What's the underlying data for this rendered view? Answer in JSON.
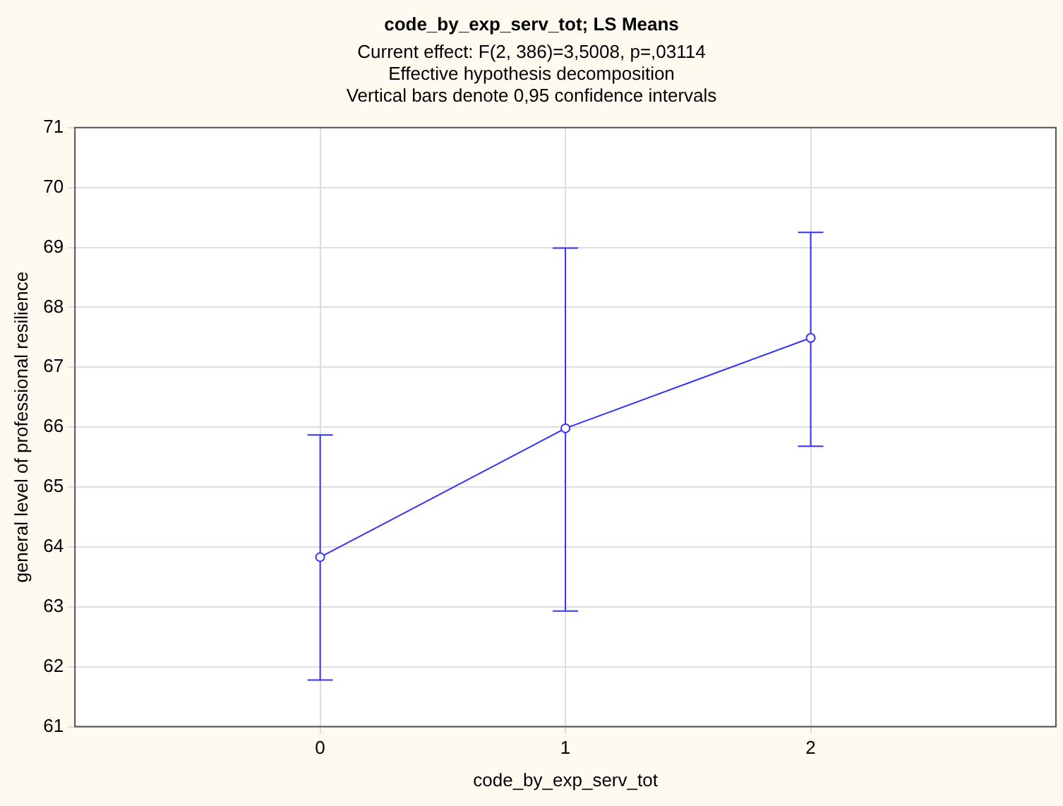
{
  "chart_data": {
    "type": "line",
    "title": "code_by_exp_serv_tot; LS Means",
    "subtitle": "Current effect: F(2, 386)=3,5008, p=,03114\nEffective hypothesis decomposition\nVertical bars denote 0,95 confidence intervals",
    "xlabel": "code_by_exp_serv_tot",
    "ylabel": "general level of professional resilience",
    "categories": [
      "0",
      "1",
      "2"
    ],
    "series": [
      {
        "color": "#3333ff",
        "values": [
          63.83,
          65.98,
          67.49
        ],
        "errors": [
          [
            61.78,
            65.87
          ],
          [
            62.93,
            68.99
          ],
          [
            65.68,
            69.25
          ]
        ]
      }
    ],
    "ylim": [
      61,
      71
    ],
    "yticks": [
      61,
      62,
      63,
      64,
      65,
      66,
      67,
      68,
      69,
      70,
      71
    ],
    "grid": true,
    "legend": false,
    "marker": "circle",
    "line_style": "solid"
  }
}
